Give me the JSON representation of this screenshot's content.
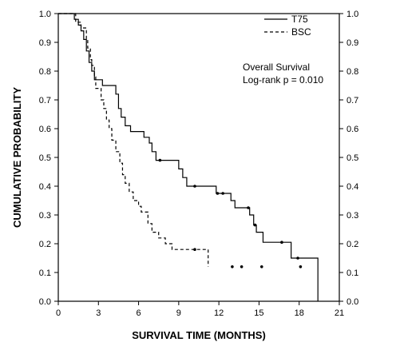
{
  "chart_data": {
    "type": "line",
    "subtype": "kaplan-meier step curve",
    "xlabel": "SURVIVAL TIME (MONTHS)",
    "ylabel": "CUMULATIVE PROBABILITY",
    "xlim": [
      0,
      21
    ],
    "ylim": [
      0,
      1.0
    ],
    "xticks": [
      "0",
      "3",
      "6",
      "9",
      "12",
      "15",
      "18",
      "21"
    ],
    "yticks": [
      "0.0",
      "0.1",
      "0.2",
      "0.3",
      "0.4",
      "0.5",
      "0.6",
      "0.7",
      "0.8",
      "0.9",
      "1.0"
    ],
    "y_axis_both_sides": true,
    "grid": false,
    "legend_position": "top-right",
    "annotations": [
      "Overall Survival",
      "Log-rank  p = 0.010"
    ],
    "series": [
      {
        "name": "T75",
        "line_style": "solid",
        "color": "#000000",
        "steps": [
          [
            0,
            1.0
          ],
          [
            1.2,
            0.98
          ],
          [
            1.5,
            0.96
          ],
          [
            1.7,
            0.94
          ],
          [
            1.9,
            0.91
          ],
          [
            2.1,
            0.87
          ],
          [
            2.3,
            0.83
          ],
          [
            2.5,
            0.8
          ],
          [
            2.7,
            0.77
          ],
          [
            3.3,
            0.75
          ],
          [
            4.3,
            0.72
          ],
          [
            4.5,
            0.67
          ],
          [
            4.7,
            0.64
          ],
          [
            5.0,
            0.61
          ],
          [
            5.4,
            0.59
          ],
          [
            6.4,
            0.57
          ],
          [
            6.8,
            0.55
          ],
          [
            7.0,
            0.52
          ],
          [
            7.3,
            0.49
          ],
          [
            9.0,
            0.46
          ],
          [
            9.3,
            0.43
          ],
          [
            9.6,
            0.4
          ],
          [
            11.8,
            0.375
          ],
          [
            12.9,
            0.35
          ],
          [
            13.2,
            0.325
          ],
          [
            14.3,
            0.3
          ],
          [
            14.6,
            0.265
          ],
          [
            14.8,
            0.24
          ],
          [
            15.3,
            0.205
          ],
          [
            17.4,
            0.15
          ],
          [
            19.4,
            0.0
          ]
        ],
        "end_x": 19.4,
        "censored": [
          [
            7.6,
            0.49
          ],
          [
            10.2,
            0.4
          ],
          [
            11.9,
            0.375
          ],
          [
            12.3,
            0.375
          ],
          [
            14.2,
            0.325
          ],
          [
            14.7,
            0.265
          ],
          [
            16.7,
            0.205
          ],
          [
            17.9,
            0.15
          ]
        ]
      },
      {
        "name": "BSC",
        "line_style": "dashed",
        "color": "#000000",
        "steps": [
          [
            0,
            1.0
          ],
          [
            1.3,
            0.97
          ],
          [
            1.7,
            0.95
          ],
          [
            2.1,
            0.91
          ],
          [
            2.2,
            0.88
          ],
          [
            2.4,
            0.84
          ],
          [
            2.5,
            0.82
          ],
          [
            2.7,
            0.78
          ],
          [
            2.8,
            0.74
          ],
          [
            3.2,
            0.7
          ],
          [
            3.4,
            0.67
          ],
          [
            3.6,
            0.63
          ],
          [
            3.8,
            0.6
          ],
          [
            4.0,
            0.56
          ],
          [
            4.3,
            0.52
          ],
          [
            4.6,
            0.48
          ],
          [
            4.8,
            0.44
          ],
          [
            5.0,
            0.41
          ],
          [
            5.3,
            0.38
          ],
          [
            5.6,
            0.35
          ],
          [
            6.0,
            0.33
          ],
          [
            6.2,
            0.31
          ],
          [
            6.7,
            0.27
          ],
          [
            7.0,
            0.24
          ],
          [
            7.5,
            0.22
          ],
          [
            8.0,
            0.2
          ],
          [
            8.5,
            0.18
          ],
          [
            11.2,
            0.12
          ]
        ],
        "end_x": 11.2,
        "censored": [
          [
            10.2,
            0.18
          ],
          [
            13.0,
            0.12
          ],
          [
            13.7,
            0.12
          ],
          [
            15.2,
            0.12
          ],
          [
            18.1,
            0.12
          ]
        ]
      }
    ]
  }
}
